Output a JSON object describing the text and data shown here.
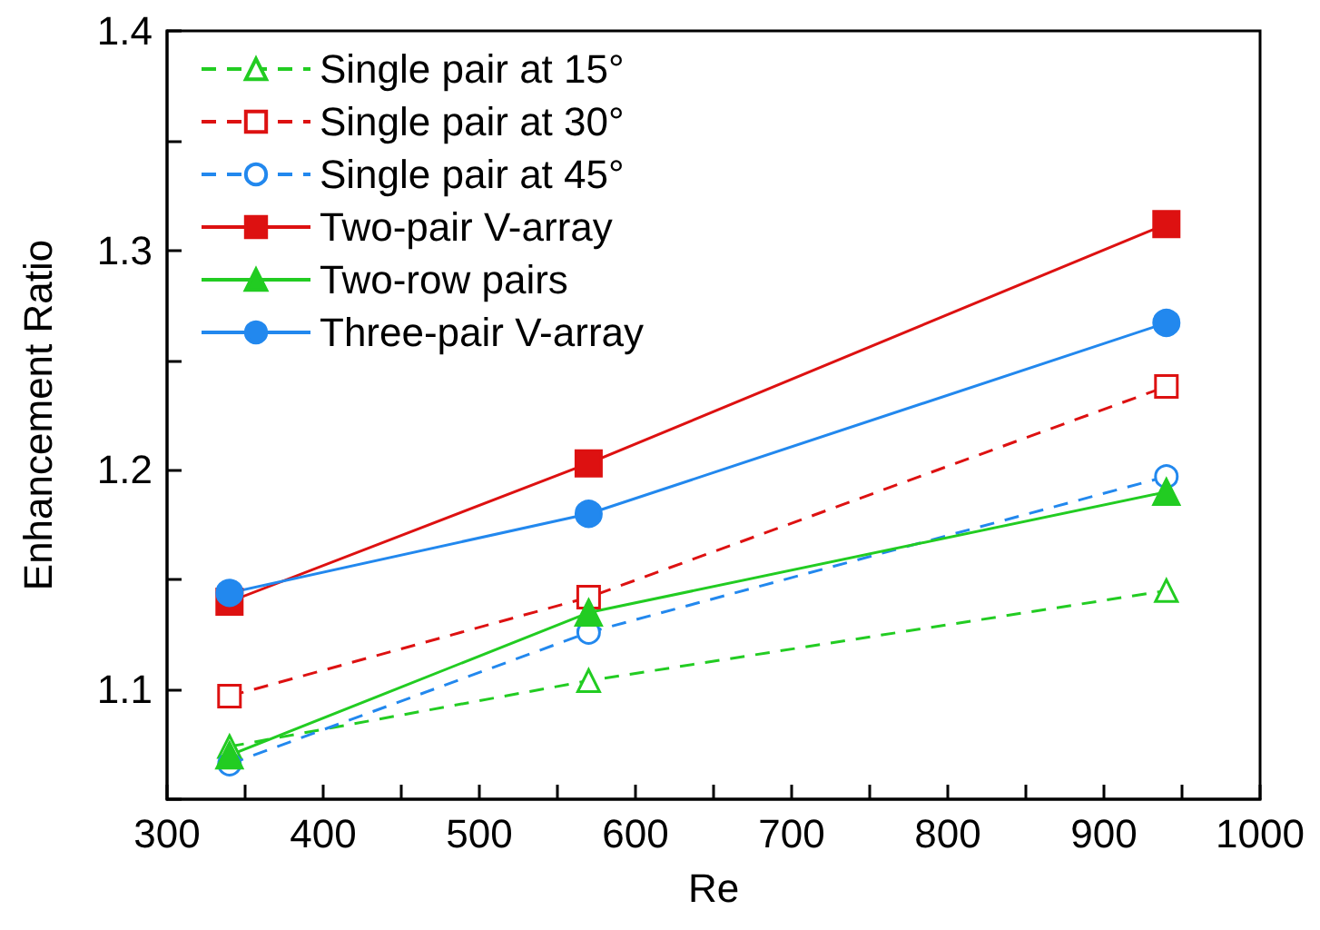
{
  "chart_data": {
    "type": "line",
    "xlabel": "Re",
    "ylabel": "Enhancement Ratio",
    "x": [
      340,
      570,
      940
    ],
    "xlim": [
      300,
      1000
    ],
    "xticks": [
      300,
      {
        "value": 350,
        "label": null
      },
      400,
      {
        "value": 450,
        "label": null
      },
      500,
      {
        "value": 550,
        "label": null
      },
      600,
      {
        "value": 650,
        "label": null
      },
      700,
      {
        "value": 750,
        "label": null
      },
      800,
      {
        "value": 850,
        "label": null
      },
      900,
      {
        "value": 950,
        "label": null
      },
      1000
    ],
    "ylim": [
      1.05,
      1.4
    ],
    "yticks": [
      {
        "value": 1.05,
        "label": null
      },
      1.1,
      {
        "value": 1.15,
        "label": null
      },
      1.2,
      {
        "value": 1.25,
        "label": null
      },
      1.3,
      {
        "value": 1.35,
        "label": null
      },
      1.4
    ],
    "grid": false,
    "legend": "top left",
    "series": [
      {
        "name": "Single pair at 15°",
        "color": "#22cc22",
        "marker": "triangle",
        "line_style": "dashed",
        "values": [
          1.074,
          1.104,
          1.145
        ]
      },
      {
        "name": "Single pair at 30°",
        "color": "#dd1111",
        "marker": "square",
        "line_style": "dashed",
        "values": [
          1.097,
          1.142,
          1.238
        ]
      },
      {
        "name": "Single pair at 45°",
        "color": "#2288ee",
        "marker": "circle",
        "line_style": "dashed",
        "values": [
          1.066,
          1.126,
          1.197
        ]
      },
      {
        "name": "Two-pair V-array",
        "color": "#dd1111",
        "marker": "square",
        "line_style": "solid",
        "values": [
          1.14,
          1.203,
          1.312
        ]
      },
      {
        "name": "Two-row pairs",
        "color": "#22cc22",
        "marker": "triangle",
        "line_style": "solid",
        "values": [
          1.07,
          1.135,
          1.19
        ]
      },
      {
        "name": "Three-pair V-array",
        "color": "#2288ee",
        "marker": "circle",
        "line_style": "solid",
        "values": [
          1.144,
          1.18,
          1.267
        ]
      }
    ]
  }
}
